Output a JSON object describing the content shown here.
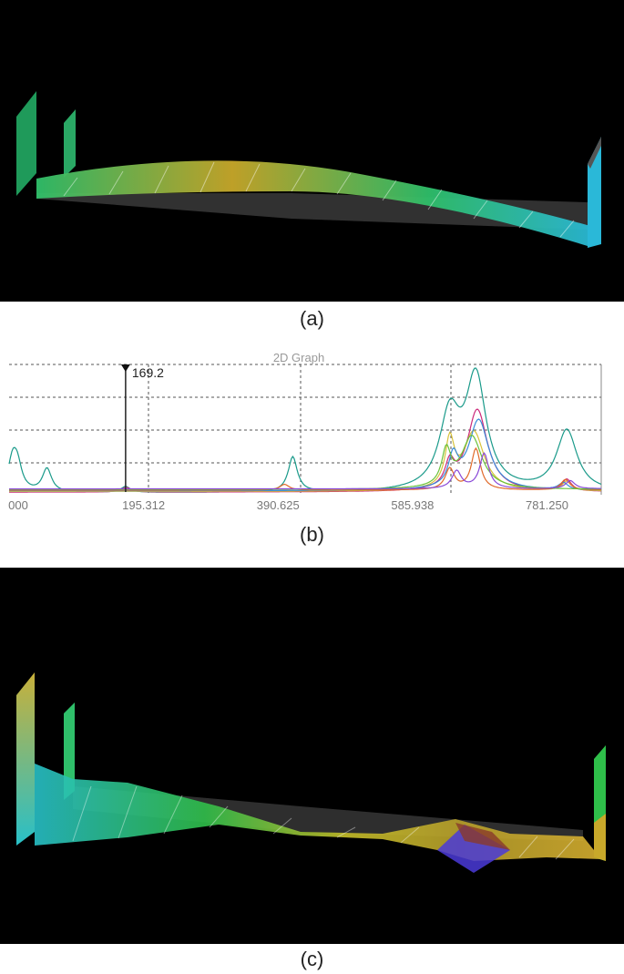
{
  "captions": {
    "a": "(a)",
    "b": "(b)",
    "c": "(c)"
  },
  "graph": {
    "title": "2D Graph",
    "marker_label": "169.2",
    "x_ticks": [
      "000",
      "195.312",
      "390.625",
      "585.938",
      "781.250"
    ]
  },
  "chart_data": {
    "type": "line",
    "title": "2D Graph",
    "xlabel": "",
    "ylabel": "",
    "xlim": [
      0,
      860
    ],
    "x_tick_labels": [
      "000",
      "195.312",
      "390.625",
      "585.938",
      "781.250"
    ],
    "marker": {
      "x": 169.2,
      "label": "169.2"
    },
    "grid": true,
    "series": [
      {
        "color": "#1a9a8a",
        "peaks": [
          [
            5,
            0.25
          ],
          [
            12,
            0.2
          ],
          [
            55,
            0.2
          ],
          [
            169.2,
            0.05
          ],
          [
            412,
            0.3
          ],
          [
            640,
            0.62
          ],
          [
            678,
            0.94
          ],
          [
            810,
            0.52
          ]
        ]
      },
      {
        "color": "#cc2a7a",
        "peaks": [
          [
            170,
            0.04
          ],
          [
            640,
            0.2
          ],
          [
            680,
            0.7
          ],
          [
            810,
            0.1
          ]
        ]
      },
      {
        "color": "#d8c23a",
        "peaks": [
          [
            640,
            0.4
          ],
          [
            675,
            0.5
          ],
          [
            810,
            0.08
          ]
        ]
      },
      {
        "color": "#3a8ad8",
        "peaks": [
          [
            645,
            0.25
          ],
          [
            682,
            0.6
          ],
          [
            805,
            0.06
          ]
        ]
      },
      {
        "color": "#e06a2a",
        "peaks": [
          [
            400,
            0.05
          ],
          [
            640,
            0.18
          ],
          [
            678,
            0.35
          ],
          [
            808,
            0.09
          ]
        ]
      },
      {
        "color": "#6ac23a",
        "peaks": [
          [
            635,
            0.3
          ],
          [
            672,
            0.45
          ]
        ]
      },
      {
        "color": "#8a4ad8",
        "peaks": [
          [
            650,
            0.15
          ],
          [
            690,
            0.3
          ],
          [
            815,
            0.07
          ]
        ]
      }
    ]
  },
  "views": {
    "a": {
      "colors": {
        "left": "#2fbf6a",
        "middle": "#c8a82a",
        "right": "#2ab8d8"
      }
    },
    "c": {
      "colors": {
        "left": "#28c0c8",
        "middle": "#2fbf4a",
        "right": "#b8a02a",
        "dip": "#4a3ad8"
      }
    }
  }
}
